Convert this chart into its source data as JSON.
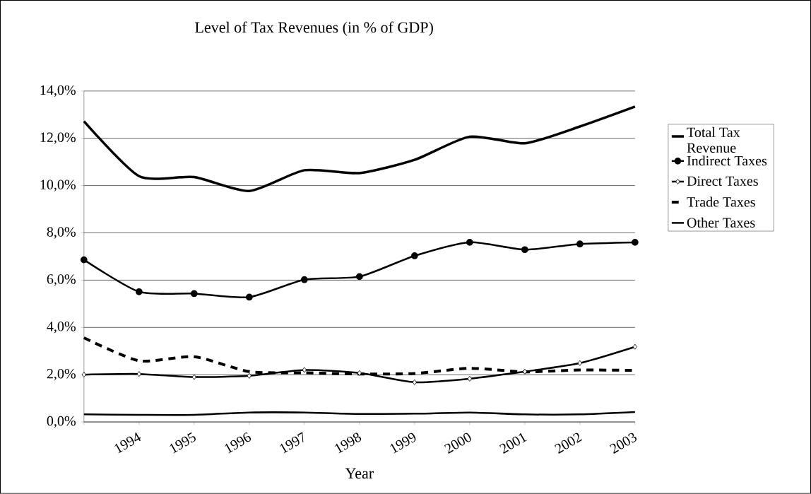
{
  "chart_data": {
    "type": "line",
    "title": "Level of Tax Revenues (in % of GDP)",
    "xlabel": "Year",
    "categories": [
      null,
      "1994",
      "1995",
      "1996",
      "1997",
      "1998",
      "1999",
      "2000",
      "2001",
      "2002",
      "2003"
    ],
    "series": [
      {
        "name": "Total Tax Revenue",
        "color": "#000000",
        "marker": "none",
        "line_style": "solid",
        "values": [
          12.72,
          10.4,
          10.36,
          9.77,
          10.65,
          10.53,
          11.09,
          12.07,
          11.79,
          12.5,
          13.34
        ]
      },
      {
        "name": "Indirect Taxes",
        "color": "#000000",
        "marker": "circle",
        "line_style": "solid",
        "values": [
          6.86,
          5.51,
          5.43,
          5.28,
          6.02,
          6.15,
          7.03,
          7.6,
          7.29,
          7.53,
          7.6
        ]
      },
      {
        "name": "Direct Taxes",
        "color": "#000000",
        "marker": "diamond",
        "line_style": "solid",
        "values": [
          2.0,
          2.03,
          1.9,
          1.95,
          2.2,
          2.07,
          1.68,
          1.83,
          2.13,
          2.49,
          3.18
        ]
      },
      {
        "name": "Trade Taxes",
        "color": "#000000",
        "marker": "none",
        "line_style": "dashed",
        "values": [
          3.56,
          2.59,
          2.76,
          2.13,
          2.08,
          2.03,
          2.05,
          2.27,
          2.12,
          2.2,
          2.18
        ]
      },
      {
        "name": "Other Taxes",
        "color": "#000000",
        "marker": "none",
        "line_style": "solid",
        "values": [
          0.32,
          0.3,
          0.3,
          0.4,
          0.4,
          0.34,
          0.35,
          0.4,
          0.32,
          0.32,
          0.42
        ]
      }
    ],
    "ylim": [
      0,
      14
    ],
    "yticks": [
      {
        "value": 0,
        "label": "0,0%"
      },
      {
        "value": 2,
        "label": "2,0%"
      },
      {
        "value": 4,
        "label": "4,0%"
      },
      {
        "value": 6,
        "label": "6,0%"
      },
      {
        "value": 8,
        "label": "8,0%"
      },
      {
        "value": 10,
        "label": "10,0%"
      },
      {
        "value": 12,
        "label": "12,0%"
      },
      {
        "value": 14,
        "label": "14,0%"
      }
    ],
    "grid": "y",
    "legend": "right"
  }
}
